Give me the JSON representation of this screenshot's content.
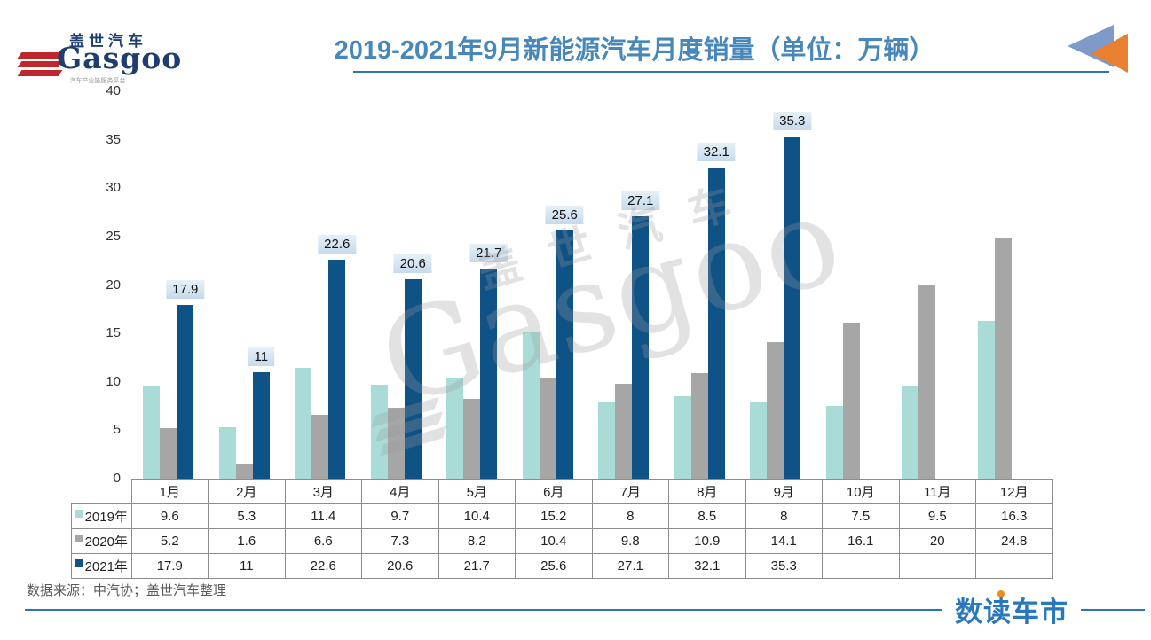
{
  "header": {
    "logo": {
      "cn": "盖世汽车",
      "en": "Gasgoo",
      "tagline": "汽车产业链服务平台"
    },
    "title": "2019-2021年9月新能源汽车月度销量（单位：万辆）"
  },
  "chart_data": {
    "type": "bar",
    "title": "2019-2021年9月新能源汽车月度销量（单位：万辆）",
    "unit": "万辆",
    "categories": [
      "1月",
      "2月",
      "3月",
      "4月",
      "5月",
      "6月",
      "7月",
      "8月",
      "9月",
      "10月",
      "11月",
      "12月"
    ],
    "series": [
      {
        "name": "2019年",
        "color": "#a9dcd6",
        "values": [
          9.6,
          5.3,
          11.4,
          9.7,
          10.4,
          15.2,
          8,
          8.5,
          8,
          7.5,
          9.5,
          16.3
        ]
      },
      {
        "name": "2020年",
        "color": "#a6a6a6",
        "values": [
          5.2,
          1.6,
          6.6,
          7.3,
          8.2,
          10.4,
          9.8,
          10.9,
          14.1,
          16.1,
          20,
          24.8
        ]
      },
      {
        "name": "2021年",
        "color": "#0f5286",
        "data_labels": true,
        "label_bg": "#cfe1f1",
        "values": [
          17.9,
          11,
          22.6,
          20.6,
          21.7,
          25.6,
          27.1,
          32.1,
          35.3,
          null,
          null,
          null
        ]
      }
    ],
    "ylim": [
      0,
      40
    ],
    "yticks": [
      0,
      5,
      10,
      15,
      20,
      25,
      30,
      35,
      40
    ],
    "grid": false,
    "legend_position": "table-row-headers"
  },
  "watermark": {
    "cn": "盖世汽车",
    "en": "Gasgoo"
  },
  "footer": {
    "source": "数据来源：中汽协；盖世汽车整理",
    "brand": "数读车市"
  }
}
